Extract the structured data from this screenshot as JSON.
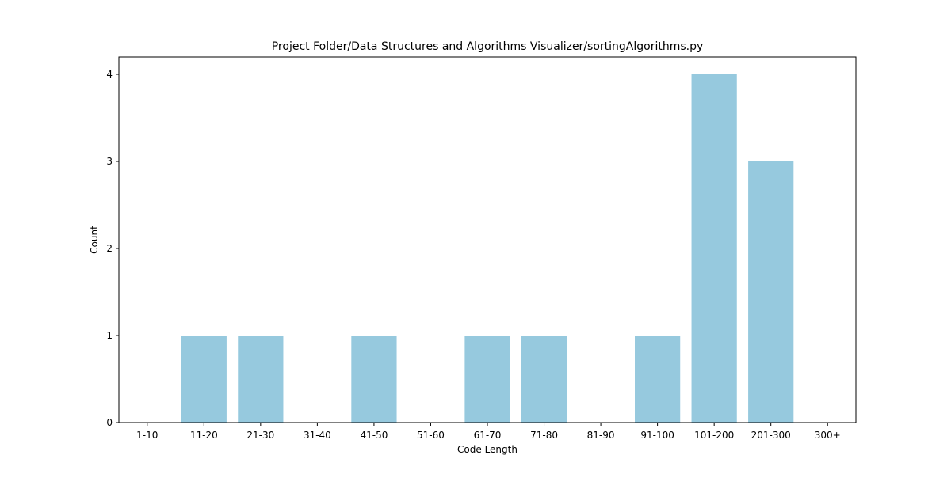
{
  "chart_data": {
    "type": "bar",
    "title": "Project Folder/Data Structures and Algorithms Visualizer/sortingAlgorithms.py",
    "xlabel": "Code Length",
    "ylabel": "Count",
    "categories": [
      "1-10",
      "11-20",
      "21-30",
      "31-40",
      "41-50",
      "51-60",
      "61-70",
      "71-80",
      "81-90",
      "91-100",
      "101-200",
      "201-300",
      "300+"
    ],
    "values": [
      0,
      1,
      1,
      0,
      1,
      0,
      1,
      1,
      0,
      1,
      4,
      3,
      0
    ],
    "ylim": [
      0,
      4.2
    ],
    "yticks": [
      0,
      1,
      2,
      3,
      4
    ],
    "grid": false,
    "bar_color": "#96c9de"
  }
}
